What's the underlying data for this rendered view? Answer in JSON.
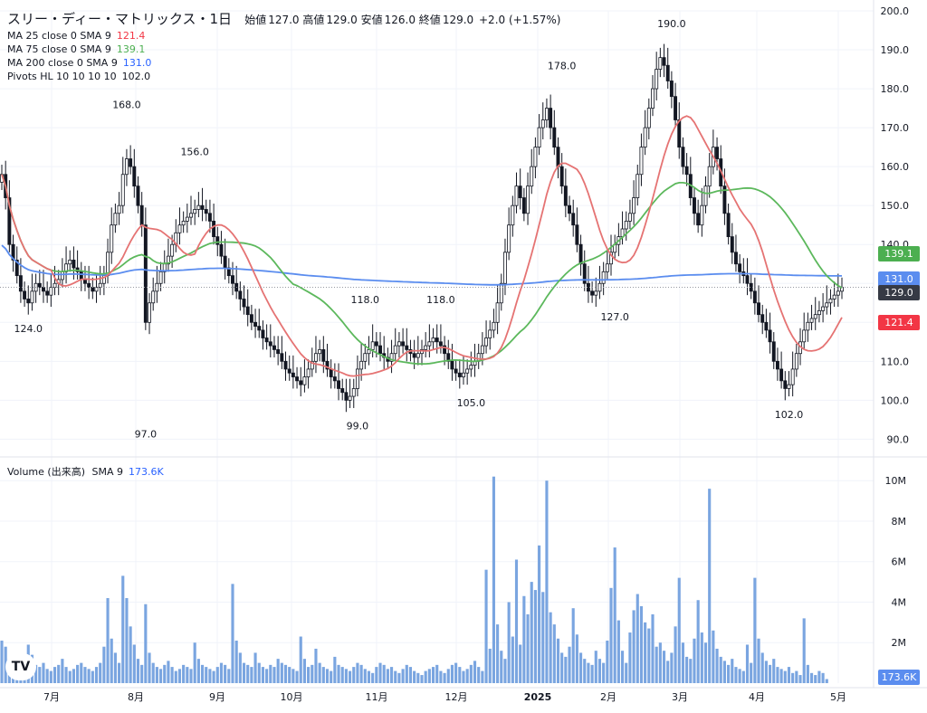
{
  "header": {
    "symbol": "スリー・ディー・マトリックス・1日",
    "open_label": "始値",
    "open": "127.0",
    "high_label": "高値",
    "high": "129.0",
    "low_label": "安値",
    "low": "126.0",
    "close_label": "終値",
    "close": "129.0",
    "change": "+2.0 (+1.57%)"
  },
  "legend": [
    {
      "label": "MA 25 close 0 SMA 9",
      "value": "121.4",
      "color": "#f23645"
    },
    {
      "label": "MA 75 close 0 SMA 9",
      "value": "139.1",
      "color": "#4caf50"
    },
    {
      "label": "MA 200 close 0 SMA 9",
      "value": "131.0",
      "color": "#2962ff"
    },
    {
      "label": "Pivots HL 10 10 10 10",
      "value": "102.0",
      "color": "#131722"
    }
  ],
  "volume_legend": {
    "label": "Volume (出来高)",
    "sma": "SMA 9",
    "value": "173.6K"
  },
  "price_tags": {
    "ma75": "139.1",
    "ma200": "131.0",
    "last": "129.0",
    "ma25": "121.4",
    "volume": "173.6K"
  },
  "colors": {
    "ma25": "#e57373",
    "ma75": "#5cb85c",
    "ma200": "#5b8def",
    "candle": "#131722",
    "volume": "#7aa5e0",
    "last_tag": "#363a45"
  },
  "chart_data": {
    "type": "candlestick",
    "price_axis": {
      "ticks": [
        "200.0",
        "190.0",
        "180.0",
        "170.0",
        "160.0",
        "150.0",
        "140.0",
        "130.0",
        "120.0",
        "110.0",
        "100.0",
        "90.0"
      ],
      "range": [
        88,
        200
      ]
    },
    "volume_axis": {
      "ticks": [
        "10M",
        "8M",
        "6M",
        "4M",
        "2M"
      ],
      "range": [
        0,
        10500000
      ]
    },
    "x_labels": [
      "7月",
      "8月",
      "9月",
      "10月",
      "11月",
      "12月",
      "2025",
      "2月",
      "3月",
      "4月",
      "5月"
    ],
    "pivot_labels": [
      {
        "text": "168.0",
        "i": 33,
        "price": 168,
        "pos": "high"
      },
      {
        "text": "97.0",
        "i": 38,
        "price": 97,
        "pos": "low"
      },
      {
        "text": "156.0",
        "i": 51,
        "price": 156,
        "pos": "high"
      },
      {
        "text": "124.0",
        "i": 7,
        "price": 124,
        "pos": "low"
      },
      {
        "text": "118.0",
        "i": 96,
        "price": 118,
        "pos": "high"
      },
      {
        "text": "118.0",
        "i": 116,
        "price": 118,
        "pos": "high"
      },
      {
        "text": "99.0",
        "i": 94,
        "price": 99,
        "pos": "low"
      },
      {
        "text": "105.0",
        "i": 124,
        "price": 105,
        "pos": "low"
      },
      {
        "text": "178.0",
        "i": 148,
        "price": 178,
        "pos": "high"
      },
      {
        "text": "127.0",
        "i": 162,
        "price": 127,
        "pos": "low"
      },
      {
        "text": "190.0",
        "i": 177,
        "price": 190,
        "pos": "high"
      },
      {
        "text": "102.0",
        "i": 208,
        "price": 102,
        "pos": "low"
      }
    ],
    "closes": [
      158,
      152,
      140,
      136,
      132,
      128,
      126,
      125,
      128,
      130,
      129,
      128,
      127,
      129,
      130,
      131,
      133,
      135,
      136,
      134,
      133,
      131,
      130,
      129,
      128,
      129,
      130,
      132,
      138,
      145,
      148,
      150,
      158,
      162,
      160,
      155,
      150,
      145,
      120,
      125,
      128,
      130,
      133,
      135,
      137,
      140,
      143,
      145,
      146,
      147,
      148,
      149,
      150,
      149,
      148,
      146,
      142,
      140,
      137,
      134,
      132,
      130,
      128,
      126,
      124,
      122,
      120,
      119,
      118,
      116,
      115,
      114,
      113,
      112,
      110,
      108,
      107,
      106,
      105,
      104,
      106,
      108,
      110,
      112,
      113,
      110,
      108,
      106,
      105,
      103,
      102,
      100,
      101,
      103,
      108,
      110,
      112,
      113,
      115,
      114,
      112,
      111,
      110,
      112,
      114,
      115,
      114,
      113,
      112,
      111,
      112,
      113,
      114,
      115,
      116,
      115,
      114,
      112,
      110,
      108,
      107,
      106,
      107,
      108,
      109,
      110,
      112,
      114,
      116,
      118,
      120,
      125,
      130,
      138,
      145,
      150,
      155,
      152,
      148,
      155,
      160,
      165,
      170,
      172,
      175,
      170,
      165,
      160,
      155,
      150,
      148,
      145,
      140,
      135,
      130,
      128,
      127,
      128,
      130,
      133,
      135,
      138,
      140,
      142,
      144,
      146,
      148,
      152,
      158,
      165,
      170,
      175,
      180,
      185,
      188,
      186,
      182,
      178,
      172,
      165,
      160,
      158,
      152,
      148,
      145,
      150,
      155,
      160,
      165,
      162,
      155,
      148,
      142,
      138,
      135,
      133,
      132,
      130,
      128,
      125,
      122,
      120,
      118,
      115,
      110,
      108,
      105,
      103,
      104,
      108,
      112,
      115,
      118,
      120,
      121,
      122,
      123,
      124,
      125,
      126,
      127,
      128,
      129
    ],
    "volumes": [
      2.1,
      1.8,
      1.2,
      1.0,
      0.9,
      0.8,
      1.1,
      1.9,
      1.4,
      0.9,
      0.8,
      1.0,
      0.7,
      0.6,
      0.8,
      0.9,
      1.2,
      0.8,
      0.6,
      0.7,
      0.9,
      1.0,
      0.8,
      0.7,
      0.6,
      0.8,
      1.0,
      1.8,
      4.2,
      2.2,
      1.5,
      1.0,
      5.3,
      4.2,
      2.8,
      1.9,
      1.2,
      0.9,
      3.9,
      1.5,
      1.0,
      0.8,
      0.7,
      0.9,
      1.1,
      0.8,
      0.6,
      0.7,
      0.9,
      0.8,
      0.7,
      2.0,
      1.2,
      0.9,
      0.8,
      0.7,
      0.6,
      0.8,
      1.0,
      0.9,
      0.7,
      4.9,
      2.1,
      1.5,
      1.0,
      0.9,
      0.8,
      1.5,
      1.0,
      0.8,
      0.7,
      0.9,
      0.8,
      1.2,
      1.0,
      0.9,
      0.8,
      0.7,
      0.6,
      2.3,
      1.2,
      0.8,
      0.9,
      1.7,
      1.0,
      0.8,
      0.7,
      0.6,
      1.3,
      0.9,
      0.8,
      0.7,
      0.6,
      0.8,
      1.0,
      0.9,
      0.7,
      0.6,
      0.5,
      0.8,
      1.0,
      0.9,
      0.7,
      0.8,
      0.6,
      0.5,
      0.7,
      0.9,
      0.8,
      0.6,
      0.5,
      0.4,
      0.6,
      0.7,
      0.8,
      0.9,
      0.6,
      0.5,
      0.7,
      0.9,
      1.0,
      0.8,
      0.6,
      0.7,
      0.9,
      1.1,
      0.8,
      0.6,
      5.6,
      1.7,
      10.2,
      2.9,
      1.6,
      1.2,
      4.0,
      2.3,
      6.1,
      1.9,
      4.3,
      3.4,
      5.0,
      4.6,
      6.8,
      4.5,
      10.0,
      3.5,
      2.9,
      2.2,
      1.5,
      1.3,
      1.8,
      3.7,
      2.4,
      1.5,
      1.2,
      1.0,
      0.9,
      1.6,
      1.2,
      1.0,
      2.1,
      4.7,
      6.7,
      3.1,
      1.6,
      1.0,
      2.5,
      3.6,
      4.4,
      3.8,
      3.0,
      2.7,
      3.4,
      1.8,
      2.0,
      1.6,
      1.1,
      1.5,
      2.8,
      5.2,
      2.0,
      1.3,
      1.2,
      2.2,
      4.1,
      2.5,
      2.0,
      9.6,
      2.6,
      1.7,
      1.3,
      1.1,
      0.9,
      1.2,
      0.8,
      0.7,
      0.6,
      1.9,
      1.0,
      5.2,
      2.2,
      1.5,
      1.1,
      0.9,
      1.2,
      0.8,
      0.7,
      0.6,
      0.8,
      0.5,
      0.6,
      0.4,
      3.2,
      0.9,
      0.5,
      0.4,
      0.6,
      0.5,
      0.2
    ]
  }
}
